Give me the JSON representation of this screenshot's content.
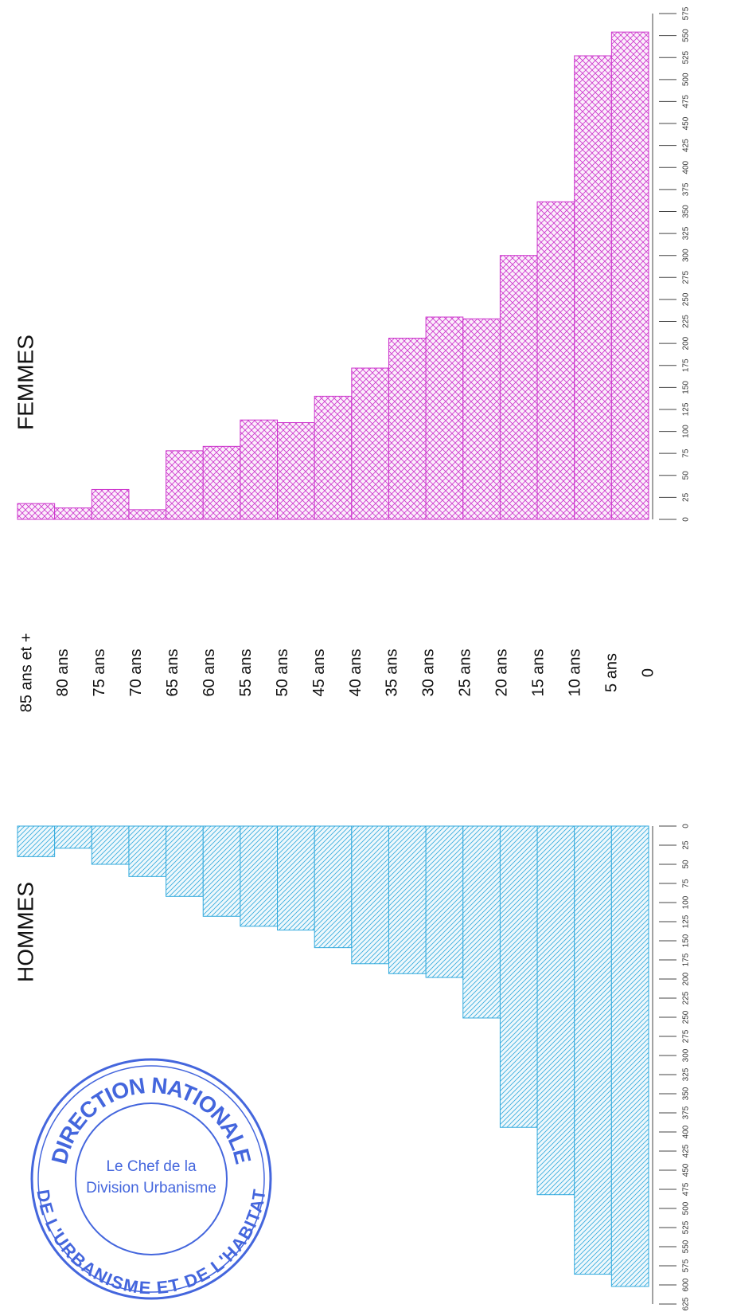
{
  "chart_data": {
    "type": "bar",
    "age_labels": [
      "85 ans et +",
      "80 ans",
      "75 ans",
      "70 ans",
      "65 ans",
      "60 ans",
      "55 ans",
      "50 ans",
      "45 ans",
      "40 ans",
      "35 ans",
      "30 ans",
      "25 ans",
      "20 ans",
      "15 ans",
      "10 ans",
      "5 ans",
      "0"
    ],
    "series": [
      {
        "name": "FEMMES",
        "color": "#cc33cc",
        "values": [
          18,
          13,
          34,
          11,
          78,
          83,
          113,
          110,
          140,
          172,
          206,
          230,
          228,
          300,
          361,
          527,
          554
        ]
      },
      {
        "name": "HOMMES",
        "color": "#33aadd",
        "axis": "y2",
        "values": [
          40,
          29,
          50,
          66,
          92,
          118,
          131,
          136,
          159,
          180,
          193,
          198,
          251,
          394,
          482,
          586,
          602
        ]
      }
    ],
    "ylim": [
      0,
      575
    ],
    "yticks": [
      0,
      25,
      50,
      75,
      100,
      125,
      150,
      175,
      200,
      225,
      250,
      275,
      300,
      325,
      350,
      375,
      400,
      425,
      450,
      475,
      500,
      525,
      550,
      575
    ],
    "y2lim": [
      0,
      625
    ],
    "y2ticks": [
      0,
      25,
      50,
      75,
      100,
      125,
      150,
      175,
      200,
      225,
      250,
      275,
      300,
      325,
      350,
      375,
      400,
      425,
      450,
      475,
      500,
      525,
      550,
      575,
      600,
      625
    ]
  },
  "stamp": {
    "top": "DIRECTION NATIONALE",
    "bottom": "DE L'URBANISME ET DE L'HABITAT",
    "line1": "Le Chef de la",
    "line2": "Division Urbanisme"
  }
}
